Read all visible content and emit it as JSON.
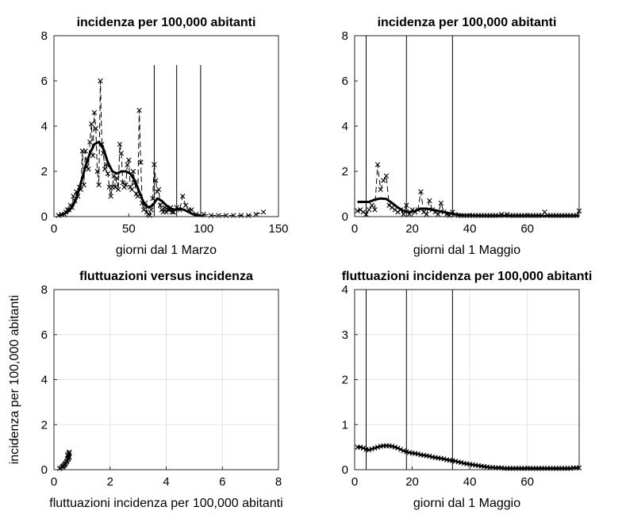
{
  "chart_data": [
    {
      "type": "line",
      "title": "incidenza per 100,000 abitanti",
      "xlabel": "giorni dal 1 Marzo",
      "ylabel": "",
      "xlim": [
        0,
        150
      ],
      "ylim": [
        0,
        8
      ],
      "xticks": [
        0,
        50,
        100,
        150
      ],
      "yticks": [
        0,
        2,
        4,
        6,
        8
      ],
      "grid": false,
      "vlines": [
        67,
        82,
        98
      ],
      "series": [
        {
          "style": "markers-x",
          "x": [
            3,
            5,
            7,
            8,
            9,
            10,
            11,
            12,
            13,
            14,
            15,
            16,
            17,
            18,
            19,
            20,
            21,
            22,
            23,
            24,
            25,
            26,
            27,
            28,
            29,
            30,
            31,
            32,
            33,
            34,
            35,
            36,
            37,
            38,
            39,
            40,
            41,
            42,
            43,
            44,
            45,
            46,
            47,
            48,
            49,
            50,
            51,
            52,
            53,
            54,
            55,
            56,
            57,
            58,
            59,
            60,
            61,
            62,
            63,
            64,
            65,
            66,
            67,
            68,
            69,
            70,
            71,
            72,
            73,
            74,
            75,
            76,
            77,
            78,
            79,
            80,
            82,
            84,
            86,
            88,
            90,
            92,
            95,
            100,
            105,
            110,
            115,
            120,
            125,
            130,
            135,
            140
          ],
          "y": [
            0.05,
            0.1,
            0.1,
            0.2,
            0.3,
            0.3,
            0.5,
            0.4,
            0.9,
            0.7,
            1.1,
            0.9,
            1.3,
            1.2,
            2.9,
            1.4,
            2.9,
            2.2,
            2.1,
            3.3,
            4.1,
            2.7,
            4.6,
            3.9,
            2.0,
            1.4,
            6.0,
            3.2,
            2.8,
            2.1,
            2.3,
            1.9,
            1.3,
            0.9,
            1.3,
            1.8,
            1.3,
            1.7,
            1.2,
            3.2,
            2.8,
            1.5,
            1.3,
            1.4,
            2.3,
            2.5,
            1.3,
            1.2,
            2.0,
            1.5,
            1.0,
            0.9,
            4.7,
            2.4,
            0.6,
            0.3,
            0.6,
            0.2,
            0.1,
            0.05,
            0.3,
            0.8,
            2.3,
            1.6,
            1.1,
            1.2,
            0.5,
            0.3,
            0.2,
            0.4,
            0.2,
            0.3,
            0.3,
            0.4,
            0.2,
            0.2,
            0.4,
            0.3,
            0.9,
            0.5,
            0.3,
            0.3,
            0.1,
            0.1,
            0.05,
            0.05,
            0.05,
            0.05,
            0.05,
            0.05,
            0.1,
            0.2
          ]
        },
        {
          "style": "dashed",
          "x": [
            3,
            5,
            7,
            8,
            9,
            10,
            11,
            12,
            13,
            14,
            15,
            16,
            17,
            18,
            19,
            20,
            21,
            22,
            23,
            24,
            25,
            26,
            27,
            28,
            29,
            30,
            31,
            32,
            33,
            34,
            35,
            36,
            37,
            38,
            39,
            40,
            41,
            42,
            43,
            44,
            45,
            46,
            47,
            48,
            49,
            50,
            51,
            52,
            53,
            54,
            55,
            56,
            57,
            58,
            59,
            60,
            61,
            62,
            63,
            64,
            65,
            66,
            67,
            68,
            69,
            70,
            71,
            72,
            73,
            74,
            75,
            76,
            77,
            78,
            79,
            80,
            82,
            84,
            86,
            88,
            90,
            92,
            95,
            100,
            105,
            110,
            115,
            120,
            125,
            130,
            135,
            140
          ],
          "y": [
            0.05,
            0.1,
            0.1,
            0.2,
            0.3,
            0.3,
            0.5,
            0.4,
            0.9,
            0.7,
            1.1,
            0.9,
            1.3,
            1.2,
            2.9,
            1.4,
            2.9,
            2.2,
            2.1,
            3.3,
            4.1,
            2.7,
            4.6,
            3.9,
            2.0,
            1.4,
            6.0,
            3.2,
            2.8,
            2.1,
            2.3,
            1.9,
            1.3,
            0.9,
            1.3,
            1.8,
            1.3,
            1.7,
            1.2,
            3.2,
            2.8,
            1.5,
            1.3,
            1.4,
            2.3,
            2.5,
            1.3,
            1.2,
            2.0,
            1.5,
            1.0,
            0.9,
            4.7,
            2.4,
            0.6,
            0.3,
            0.6,
            0.2,
            0.1,
            0.05,
            0.3,
            0.8,
            2.3,
            1.6,
            1.1,
            1.2,
            0.5,
            0.3,
            0.2,
            0.4,
            0.2,
            0.3,
            0.3,
            0.4,
            0.2,
            0.2,
            0.4,
            0.3,
            0.9,
            0.5,
            0.3,
            0.3,
            0.1,
            0.1,
            0.05,
            0.05,
            0.05,
            0.05,
            0.05,
            0.05,
            0.1,
            0.2
          ]
        },
        {
          "style": "thick",
          "x": [
            3,
            6,
            9,
            12,
            15,
            18,
            21,
            24,
            27,
            30,
            33,
            36,
            39,
            42,
            45,
            48,
            51,
            54,
            57,
            60,
            63,
            66,
            69,
            72,
            75,
            78,
            81,
            84,
            87,
            90,
            93,
            96,
            100
          ],
          "y": [
            0.05,
            0.1,
            0.2,
            0.4,
            0.8,
            1.5,
            2.2,
            2.8,
            3.2,
            3.3,
            3.0,
            2.4,
            2.0,
            1.9,
            2.0,
            2.0,
            1.9,
            1.6,
            1.1,
            0.6,
            0.4,
            0.5,
            0.8,
            0.7,
            0.5,
            0.35,
            0.3,
            0.35,
            0.3,
            0.2,
            0.1,
            0.05,
            0.02
          ]
        }
      ]
    },
    {
      "type": "line",
      "title": "incidenza per 100,000 abitanti",
      "xlabel": "giorni dal 1 Maggio",
      "ylabel": "",
      "xlim": [
        0,
        78
      ],
      "ylim": [
        0,
        8
      ],
      "xticks": [
        0,
        20,
        40,
        60
      ],
      "yticks": [
        0,
        2,
        4,
        6,
        8
      ],
      "grid": false,
      "vlines": [
        4,
        18,
        34
      ],
      "series": [
        {
          "style": "markers-x",
          "x": [
            1,
            2,
            3,
            4,
            5,
            6,
            7,
            8,
            9,
            10,
            11,
            12,
            13,
            14,
            15,
            16,
            17,
            18,
            19,
            20,
            21,
            22,
            23,
            24,
            25,
            26,
            27,
            28,
            29,
            30,
            31,
            32,
            33,
            34,
            35,
            36,
            37,
            38,
            39,
            40,
            41,
            42,
            43,
            44,
            45,
            46,
            47,
            48,
            49,
            50,
            51,
            52,
            53,
            54,
            55,
            56,
            57,
            58,
            59,
            60,
            61,
            62,
            63,
            64,
            65,
            66,
            67,
            68,
            69,
            70,
            71,
            72,
            73,
            74,
            75,
            76,
            77,
            78
          ],
          "y": [
            0.25,
            0.3,
            0.2,
            0.1,
            0.3,
            0.5,
            0.3,
            2.3,
            1.2,
            1.6,
            1.8,
            0.5,
            0.4,
            0.3,
            0.2,
            0.3,
            0.1,
            0.5,
            0.1,
            0.3,
            0.2,
            0.3,
            1.1,
            0.2,
            0.1,
            0.7,
            0.3,
            0.2,
            0.1,
            0.6,
            0.2,
            0.1,
            0.05,
            0.2,
            0.1,
            0.05,
            0.05,
            0.05,
            0.05,
            0.05,
            0.05,
            0.05,
            0.05,
            0.05,
            0.05,
            0.05,
            0.05,
            0.05,
            0.05,
            0.05,
            0.1,
            0.05,
            0.1,
            0.05,
            0.05,
            0.05,
            0.05,
            0.05,
            0.05,
            0.05,
            0.05,
            0.05,
            0.05,
            0.05,
            0.05,
            0.2,
            0.05,
            0.05,
            0.05,
            0.05,
            0.05,
            0.05,
            0.05,
            0.05,
            0.05,
            0.05,
            0.05,
            0.25
          ]
        },
        {
          "style": "dashed",
          "x": [
            1,
            2,
            3,
            4,
            5,
            6,
            7,
            8,
            9,
            10,
            11,
            12,
            13,
            14,
            15,
            16,
            17,
            18,
            19,
            20,
            21,
            22,
            23,
            24,
            25,
            26,
            27,
            28,
            29,
            30,
            31,
            32,
            33,
            34,
            35,
            36,
            37,
            38,
            39,
            40,
            41,
            42,
            43,
            44,
            45,
            46,
            47,
            48,
            49,
            50,
            51,
            52,
            53,
            54,
            55,
            56,
            57,
            58,
            59,
            60,
            61,
            62,
            63,
            64,
            65,
            66,
            67,
            68,
            69,
            70,
            71,
            72,
            73,
            74,
            75,
            76,
            77,
            78
          ],
          "y": [
            0.25,
            0.3,
            0.2,
            0.1,
            0.3,
            0.5,
            0.3,
            2.3,
            1.2,
            1.6,
            1.8,
            0.5,
            0.4,
            0.3,
            0.2,
            0.3,
            0.1,
            0.5,
            0.1,
            0.3,
            0.2,
            0.3,
            1.1,
            0.2,
            0.1,
            0.7,
            0.3,
            0.2,
            0.1,
            0.6,
            0.2,
            0.1,
            0.05,
            0.2,
            0.1,
            0.05,
            0.05,
            0.05,
            0.05,
            0.05,
            0.05,
            0.05,
            0.05,
            0.05,
            0.05,
            0.05,
            0.05,
            0.05,
            0.05,
            0.05,
            0.1,
            0.05,
            0.1,
            0.05,
            0.05,
            0.05,
            0.05,
            0.05,
            0.05,
            0.05,
            0.05,
            0.05,
            0.05,
            0.05,
            0.05,
            0.2,
            0.05,
            0.05,
            0.05,
            0.05,
            0.05,
            0.05,
            0.05,
            0.05,
            0.05,
            0.05,
            0.05,
            0.25
          ]
        },
        {
          "style": "thick",
          "x": [
            1,
            3,
            5,
            7,
            9,
            11,
            13,
            15,
            17,
            19,
            21,
            23,
            25,
            27,
            29,
            31,
            33,
            35,
            38,
            42,
            46,
            50,
            55,
            60,
            65,
            70,
            75,
            78
          ],
          "y": [
            0.65,
            0.65,
            0.65,
            0.75,
            0.8,
            0.78,
            0.6,
            0.4,
            0.25,
            0.2,
            0.25,
            0.35,
            0.35,
            0.3,
            0.25,
            0.2,
            0.15,
            0.1,
            0.05,
            0.03,
            0.02,
            0.02,
            0.02,
            0.02,
            0.02,
            0.02,
            0.02,
            0.02
          ]
        }
      ]
    },
    {
      "type": "line",
      "title": "fluttuazioni versus incidenza",
      "xlabel": "fluttuazioni incidenza per 100,000 abitanti",
      "ylabel": "incidenza per 100,000 abitanti",
      "xlim": [
        0,
        8
      ],
      "ylim": [
        0,
        8
      ],
      "xticks": [
        0,
        2,
        4,
        6,
        8
      ],
      "yticks": [
        0,
        2,
        4,
        6,
        8
      ],
      "grid": true,
      "vlines": [],
      "series": [
        {
          "style": "thick-markers-x",
          "x": [
            0.2,
            0.25,
            0.3,
            0.32,
            0.35,
            0.38,
            0.4,
            0.42,
            0.45,
            0.47,
            0.5,
            0.52,
            0.55,
            0.53,
            0.5,
            0.48,
            0.52,
            0.54,
            0.55
          ],
          "y": [
            0.05,
            0.08,
            0.12,
            0.15,
            0.18,
            0.22,
            0.25,
            0.3,
            0.35,
            0.4,
            0.45,
            0.5,
            0.55,
            0.6,
            0.62,
            0.65,
            0.7,
            0.75,
            0.78
          ]
        }
      ]
    },
    {
      "type": "line",
      "title": "fluttuazioni incidenza per 100,000 abitanti",
      "xlabel": "giorni dal 1 Maggio",
      "ylabel": "",
      "xlim": [
        0,
        78
      ],
      "ylim": [
        0,
        4
      ],
      "xticks": [
        0,
        20,
        40,
        60
      ],
      "yticks": [
        0,
        1,
        2,
        3,
        4
      ],
      "grid": true,
      "vlines": [
        4,
        18,
        34
      ],
      "series": [
        {
          "style": "thick-markers-x",
          "x": [
            1,
            2,
            3,
            4,
            5,
            6,
            7,
            8,
            9,
            10,
            11,
            12,
            13,
            14,
            15,
            16,
            17,
            18,
            19,
            20,
            21,
            22,
            23,
            24,
            25,
            26,
            27,
            28,
            29,
            30,
            31,
            32,
            33,
            34,
            35,
            36,
            37,
            38,
            39,
            40,
            41,
            42,
            43,
            44,
            45,
            46,
            47,
            48,
            49,
            50,
            51,
            52,
            53,
            54,
            55,
            56,
            57,
            58,
            59,
            60,
            61,
            62,
            63,
            64,
            65,
            66,
            67,
            68,
            69,
            70,
            71,
            72,
            73,
            74,
            75,
            76,
            77,
            78
          ],
          "y": [
            0.5,
            0.5,
            0.48,
            0.45,
            0.44,
            0.46,
            0.48,
            0.5,
            0.52,
            0.53,
            0.53,
            0.53,
            0.52,
            0.5,
            0.48,
            0.45,
            0.42,
            0.4,
            0.38,
            0.37,
            0.36,
            0.35,
            0.33,
            0.32,
            0.31,
            0.3,
            0.28,
            0.27,
            0.26,
            0.25,
            0.24,
            0.22,
            0.21,
            0.2,
            0.19,
            0.17,
            0.16,
            0.14,
            0.13,
            0.12,
            0.11,
            0.1,
            0.09,
            0.08,
            0.07,
            0.06,
            0.05,
            0.05,
            0.04,
            0.04,
            0.04,
            0.03,
            0.03,
            0.03,
            0.03,
            0.03,
            0.03,
            0.03,
            0.03,
            0.03,
            0.03,
            0.03,
            0.03,
            0.03,
            0.03,
            0.03,
            0.03,
            0.03,
            0.03,
            0.03,
            0.03,
            0.03,
            0.03,
            0.03,
            0.03,
            0.04,
            0.04,
            0.04
          ]
        }
      ]
    }
  ]
}
